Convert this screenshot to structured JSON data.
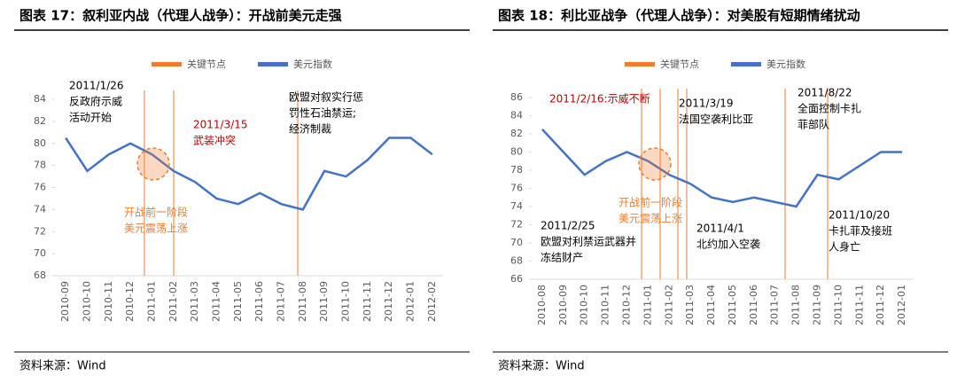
{
  "chart_data": [
    {
      "type": "line",
      "title": "图表 17：叙利亚内战（代理人战争）：开战前美元走强",
      "source": "资料来源：Wind",
      "categories": [
        "2010-09",
        "2010-10",
        "2010-11",
        "2010-12",
        "2011-01",
        "2011-02",
        "2011-03",
        "2011-04",
        "2011-05",
        "2011-06",
        "2011-07",
        "2011-08",
        "2011-09",
        "2011-10",
        "2011-11",
        "2011-12",
        "2012-01",
        "2012-02"
      ],
      "series": [
        {
          "name": "美元指数",
          "color": "#4472c4",
          "values": [
            80.5,
            77.5,
            79,
            80,
            79,
            77.5,
            76.5,
            75,
            74.5,
            75.5,
            74.5,
            74,
            77.5,
            77,
            78.5,
            80.5,
            80.5,
            79
          ]
        }
      ],
      "event_marker": {
        "name": "关键节点",
        "color": "#ed7d31"
      },
      "ylim": [
        68,
        84
      ],
      "yticks": [
        68,
        70,
        72,
        74,
        76,
        78,
        80,
        82,
        84
      ],
      "annotations": [
        {
          "text": [
            "2011/1/26",
            "反政府示威",
            "活动开始"
          ],
          "color": "#000000"
        },
        {
          "text": [
            "2011/3/15",
            "武装冲突"
          ],
          "color": "#c00000"
        },
        {
          "text": [
            "欧盟对叙实行惩",
            "罚性石油禁运;",
            "经济制裁"
          ],
          "color": "#000000"
        },
        {
          "text": [
            "开战前一阶段",
            "美元震荡上涨"
          ],
          "color": "#ed7d31"
        }
      ]
    },
    {
      "type": "line",
      "title": "图表 18：利比亚战争（代理人战争）：对美股有短期情绪扰动",
      "source": "资料来源：Wind",
      "categories": [
        "2010-08",
        "2010-09",
        "2010-10",
        "2010-11",
        "2010-12",
        "2011-01",
        "2011-02",
        "2011-03",
        "2011-04",
        "2011-05",
        "2011-06",
        "2011-07",
        "2011-08",
        "2011-09",
        "2011-10",
        "2011-11",
        "2011-12",
        "2012-01"
      ],
      "series": [
        {
          "name": "美元指数",
          "color": "#4472c4",
          "values": [
            82.5,
            80,
            77.5,
            79,
            80,
            79,
            77.5,
            76.5,
            75,
            74.5,
            75,
            74.5,
            74,
            77.5,
            77,
            78.5,
            80,
            80
          ]
        }
      ],
      "event_marker": {
        "name": "关键节点",
        "color": "#ed7d31"
      },
      "ylim": [
        66,
        86
      ],
      "yticks": [
        66,
        68,
        70,
        72,
        74,
        76,
        78,
        80,
        82,
        84,
        86
      ],
      "annotations": [
        {
          "text": [
            "2011/2/16:示威不断"
          ],
          "color": "#c00000"
        },
        {
          "text": [
            "2011/3/19",
            "法国空袭利比亚"
          ],
          "color": "#000000"
        },
        {
          "text": [
            "2011/8/22",
            "全面控制卡扎",
            "菲部队"
          ],
          "color": "#000000"
        },
        {
          "text": [
            "2011/2/25",
            "欧盟对利禁运武器并",
            "冻结财产"
          ],
          "color": "#000000"
        },
        {
          "text": [
            "2011/4/1",
            "北约加入空袭"
          ],
          "color": "#000000"
        },
        {
          "text": [
            "2011/10/20",
            "卡扎菲及接班",
            "人身亡"
          ],
          "color": "#000000"
        },
        {
          "text": [
            "开战前一阶段",
            "美元震荡上涨"
          ],
          "color": "#ed7d31"
        }
      ]
    }
  ]
}
